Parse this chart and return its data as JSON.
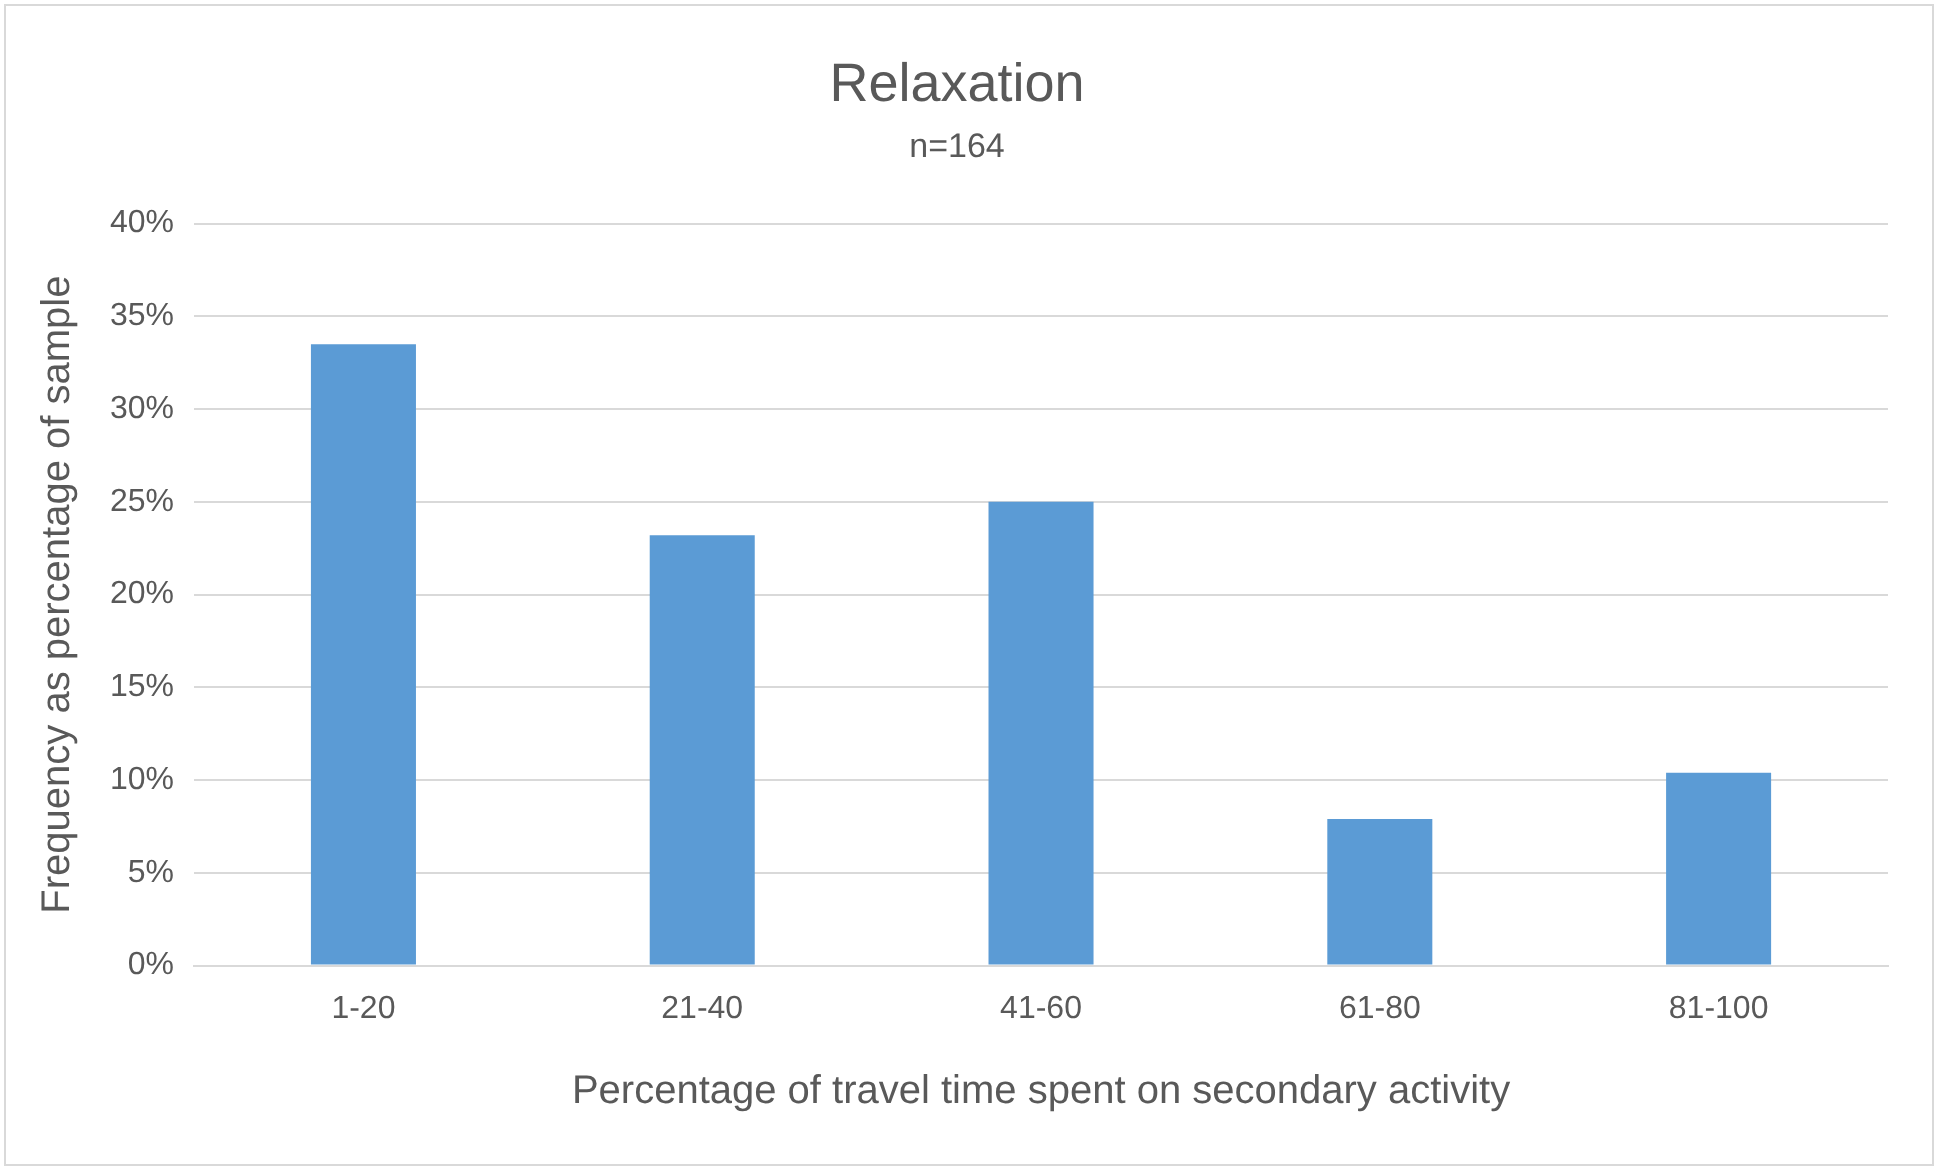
{
  "chart_data": {
    "type": "bar",
    "title": "Relaxation",
    "subtitle": "n=164",
    "xlabel": "Percentage of travel time spent on secondary activity",
    "ylabel": "Frequency as percentage of sample",
    "categories": [
      "1-20",
      "21-40",
      "41-60",
      "61-80",
      "81-100"
    ],
    "values": [
      33.5,
      23.2,
      25.0,
      7.9,
      10.4
    ],
    "color": "#5b9bd5",
    "ylim": [
      0,
      40
    ],
    "yticks": [
      {
        "value": 0,
        "label": "0%"
      },
      {
        "value": 5,
        "label": "5%"
      },
      {
        "value": 10,
        "label": "10%"
      },
      {
        "value": 15,
        "label": "15%"
      },
      {
        "value": 20,
        "label": "20%"
      },
      {
        "value": 25,
        "label": "25%"
      },
      {
        "value": 30,
        "label": "30%"
      },
      {
        "value": 35,
        "label": "35%"
      },
      {
        "value": 40,
        "label": "40%"
      }
    ],
    "grid": "y",
    "legend": false
  }
}
